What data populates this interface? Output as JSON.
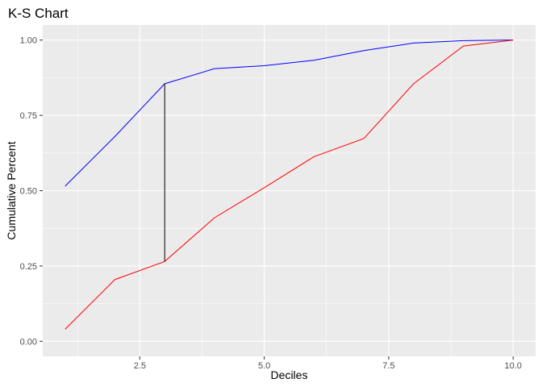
{
  "chart_data": {
    "type": "line",
    "title": "K-S Chart",
    "xlabel": "Deciles",
    "ylabel": "Cumulative Percent",
    "xlim": [
      0.55,
      10.45
    ],
    "ylim": [
      -0.05,
      1.05
    ],
    "x_ticks": [
      {
        "value": 2.5,
        "label": "2.5"
      },
      {
        "value": 5.0,
        "label": "5.0"
      },
      {
        "value": 7.5,
        "label": "7.5"
      },
      {
        "value": 10.0,
        "label": "10.0"
      }
    ],
    "y_ticks": [
      {
        "value": 0.0,
        "label": "0.00"
      },
      {
        "value": 0.25,
        "label": "0.25"
      },
      {
        "value": 0.5,
        "label": "0.50"
      },
      {
        "value": 0.75,
        "label": "0.75"
      },
      {
        "value": 1.0,
        "label": "1.00"
      }
    ],
    "grid": true,
    "legend": "none",
    "x": [
      1,
      2,
      3,
      4,
      5,
      6,
      7,
      8,
      9,
      10
    ],
    "series": [
      {
        "color": "#0000FF",
        "values": [
          0.515,
          0.68,
          0.855,
          0.905,
          0.915,
          0.933,
          0.965,
          0.99,
          0.998,
          1.0
        ]
      },
      {
        "color": "#FF0000",
        "values": [
          0.04,
          0.205,
          0.265,
          0.41,
          0.51,
          0.613,
          0.673,
          0.855,
          0.98,
          1.0
        ]
      }
    ],
    "ks_segment": {
      "x": 3,
      "y_from": 0.265,
      "y_to": 0.855,
      "color": "#000000"
    }
  }
}
